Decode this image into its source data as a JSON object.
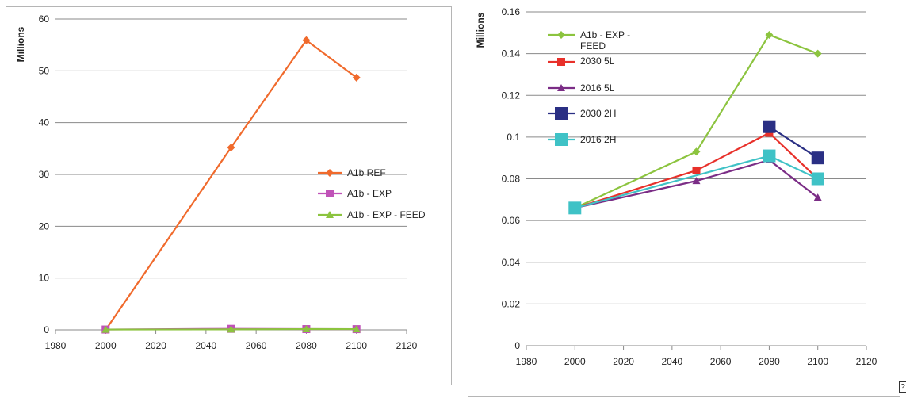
{
  "chart_data": [
    {
      "type": "line",
      "ylabel": "Millions",
      "xlim": [
        1980,
        2120
      ],
      "ylim": [
        0,
        60
      ],
      "x_ticks": [
        "1980",
        "2000",
        "2020",
        "2040",
        "2060",
        "2080",
        "2100",
        "2120"
      ],
      "y_ticks": [
        "0",
        "10",
        "20",
        "30",
        "40",
        "50",
        "60"
      ],
      "grid": true,
      "legend_position": "right",
      "series": [
        {
          "name": "A1b REF",
          "color": "#f06a2c",
          "marker": "diamond",
          "x": [
            2000,
            2050,
            2080,
            2100
          ],
          "y": [
            0,
            35.2,
            55.9,
            48.7
          ]
        },
        {
          "name": "A1b - EXP",
          "color": "#c052b8",
          "marker": "square",
          "x": [
            2000,
            2050,
            2080,
            2100
          ],
          "y": [
            0.07,
            0.2,
            0.15,
            0.14
          ]
        },
        {
          "name": "A1b - EXP - FEED",
          "color": "#8cc43f",
          "marker": "triangle",
          "x": [
            2000,
            2050,
            2080,
            2100
          ],
          "y": [
            0.066,
            0.093,
            0.149,
            0.14
          ]
        }
      ]
    },
    {
      "type": "line",
      "ylabel": "Millions",
      "xlim": [
        1980,
        2120
      ],
      "ylim": [
        0,
        0.16
      ],
      "x_ticks": [
        "1980",
        "2000",
        "2020",
        "2040",
        "2060",
        "2080",
        "2100",
        "2120"
      ],
      "y_ticks": [
        "0",
        "0.02",
        "0.04",
        "0.06",
        "0.08",
        "0.1",
        "0.12",
        "0.14",
        "0.16"
      ],
      "grid": true,
      "legend_position": "top-left",
      "series": [
        {
          "name": "A1b - EXP - FEED",
          "color": "#8cc43f",
          "marker": "diamond",
          "x": [
            2000,
            2050,
            2080,
            2100
          ],
          "y": [
            0.066,
            0.093,
            0.149,
            0.14
          ]
        },
        {
          "name": "2030 5L",
          "color": "#e8302a",
          "marker": "square",
          "x": [
            2000,
            2050,
            2080,
            2100
          ],
          "y": [
            0.066,
            0.084,
            0.102,
            0.08
          ]
        },
        {
          "name": "2016 5L",
          "color": "#7b2d86",
          "marker": "triangle",
          "x": [
            2000,
            2050,
            2080,
            2100
          ],
          "y": [
            0.066,
            0.079,
            0.089,
            0.071
          ]
        },
        {
          "name": "2030 2H",
          "color": "#2a2f84",
          "marker": "bigsquare",
          "x": [
            2080,
            2100
          ],
          "y": [
            0.105,
            0.09
          ]
        },
        {
          "name": "2016 2H",
          "color": "#3fc2c6",
          "marker": "bigsquare",
          "x": [
            2000,
            2080,
            2100
          ],
          "y": [
            0.066,
            0.091,
            0.08
          ]
        }
      ]
    }
  ],
  "legend_left": [
    "A1b REF",
    "A1b - EXP",
    "A1b - EXP - FEED"
  ],
  "legend_right": [
    "A1b - EXP -",
    "FEED",
    "2030 5L",
    "2016 5L",
    "2030 2H",
    "2016 2H"
  ],
  "corner_glyph": "?"
}
